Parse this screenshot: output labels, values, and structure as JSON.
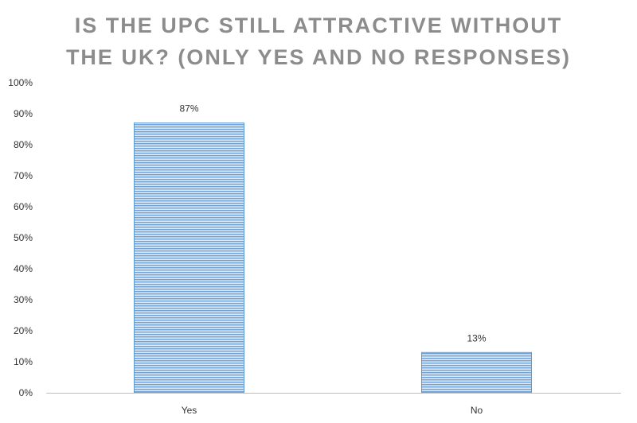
{
  "chart_data": {
    "type": "bar",
    "title_lines": [
      "IS THE UPC STILL ATTRACTIVE WITHOUT",
      "THE UK? (ONLY YES AND NO RESPONSES)"
    ],
    "categories": [
      "Yes",
      "No"
    ],
    "values": [
      87,
      13
    ],
    "data_labels": [
      "87%",
      "13%"
    ],
    "ylim": [
      0,
      100
    ],
    "yticks": [
      0,
      10,
      20,
      30,
      40,
      50,
      60,
      70,
      80,
      90,
      100
    ],
    "ytick_labels": [
      "0%",
      "10%",
      "20%",
      "30%",
      "40%",
      "50%",
      "60%",
      "70%",
      "80%",
      "90%",
      "100%"
    ],
    "grid": false,
    "legend": "none",
    "bar_color": "#5b9bd5",
    "bar_fill_light": "#dbe8f6",
    "title_color": "#8c8c8c",
    "axis_color": "#bfbfbf"
  }
}
